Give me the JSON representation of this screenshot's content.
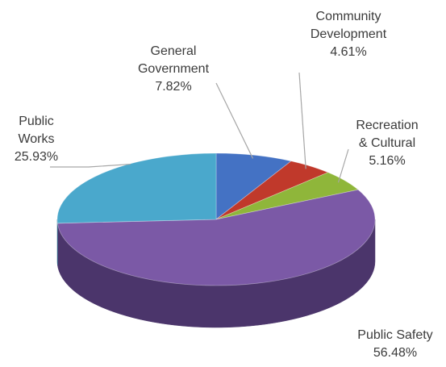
{
  "chart_data": {
    "type": "pie",
    "title": "",
    "slices": [
      {
        "category_line1": "General",
        "category_line2": "Government",
        "value": 7.82,
        "value_label": "7.82%",
        "color": "#4472c4",
        "side_color": "#2f528f"
      },
      {
        "category_line1": "Community",
        "category_line2": "Development",
        "value": 4.61,
        "value_label": "4.61%",
        "color": "#c0392b",
        "side_color": "#8e2a20"
      },
      {
        "category_line1": "Recreation",
        "category_line2": "& Cultural",
        "value": 5.16,
        "value_label": "5.16%",
        "color": "#8fb63a",
        "side_color": "#5f7a26"
      },
      {
        "category_line1": "Public Safety",
        "category_line2": "",
        "value": 56.48,
        "value_label": "56.48%",
        "color": "#7b59a6",
        "side_color": "#4b356b"
      },
      {
        "category_line1": "Public",
        "category_line2": "Works",
        "value": 25.93,
        "value_label": "25.93%",
        "color": "#4aa8cc",
        "side_color": "#2a7590"
      }
    ],
    "style": "3d-pie",
    "leader_line_color": "#a6a6a6"
  }
}
